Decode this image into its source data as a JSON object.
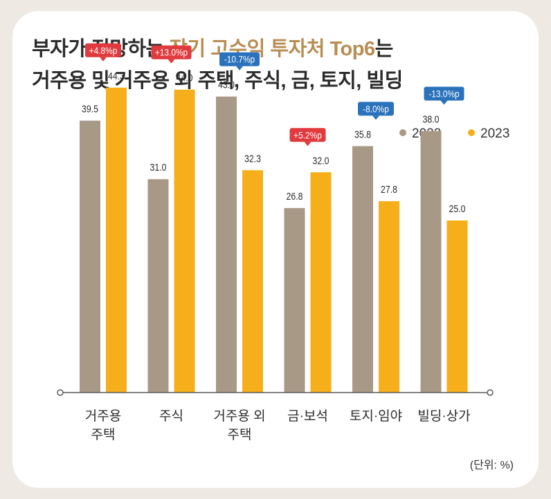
{
  "header": {
    "title_line1_a": "부자가 전망하는 ",
    "title_line1_highlight": "장기 고수익 투자처 Top6",
    "title_line1_b": "는",
    "title_line2": "거주용 및 거주용 외 주택, 주식, 금, 토지, 빌딩"
  },
  "colors": {
    "series_2022": "#a89987",
    "series_2023": "#f6ae1b",
    "badge_up": "#e03a3e",
    "badge_down": "#2a72bb",
    "title_highlight": "#b78d52",
    "axis": "#5a5a5a"
  },
  "chart_data": {
    "type": "bar",
    "title": "부자가 전망하는 장기 고수익 투자처 Top6는 거주용 및 거주용 외 주택, 주식, 금, 토지, 빌딩",
    "categories": [
      [
        "거주용",
        "주택"
      ],
      [
        "주식"
      ],
      [
        "거주용 외",
        "주택"
      ],
      [
        "금·보석"
      ],
      [
        "토지·임야"
      ],
      [
        "빌딩·상가"
      ]
    ],
    "series": [
      {
        "name": "2022",
        "values": [
          39.5,
          31.0,
          43.0,
          26.8,
          35.8,
          38.0
        ],
        "labels": [
          "39.5",
          "31.0",
          "43.0",
          "26.8",
          "35.8",
          "38.0"
        ]
      },
      {
        "name": "2023",
        "values": [
          44.3,
          44.0,
          32.3,
          32.0,
          27.8,
          25.0
        ],
        "labels": [
          "44.3",
          "44.0",
          "32.3",
          "32.0",
          "27.8",
          "25.0"
        ]
      }
    ],
    "annotations": [
      {
        "category_index": 0,
        "text": "+4.8%p",
        "direction": "up"
      },
      {
        "category_index": 1,
        "text": "+13.0%p",
        "direction": "up"
      },
      {
        "category_index": 2,
        "text": "-10.7%p",
        "direction": "down"
      },
      {
        "category_index": 3,
        "text": "+5.2%p",
        "direction": "up"
      },
      {
        "category_index": 4,
        "text": "-8.0%p",
        "direction": "down"
      },
      {
        "category_index": 5,
        "text": "-13.0%p",
        "direction": "down"
      }
    ],
    "legend_placement": "top-right",
    "unit_note": "(단위: %)",
    "ylim": [
      0,
      50
    ],
    "grid": false
  }
}
